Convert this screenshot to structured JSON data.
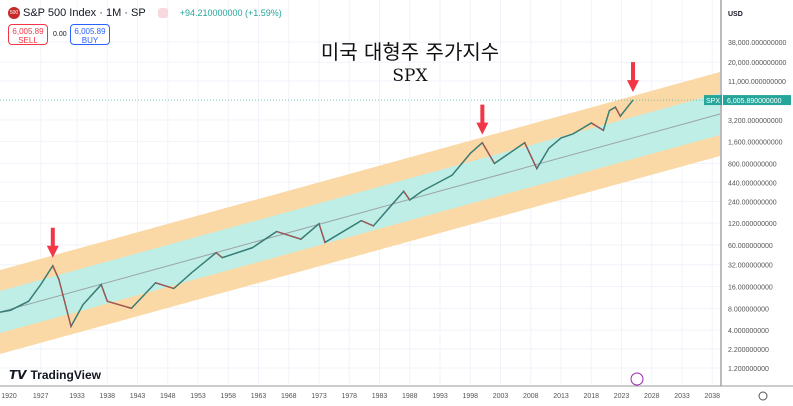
{
  "header": {
    "symbol": "S&P 500 Index · 1M · SP",
    "logo_text": "500",
    "change": "+94.210000000 (+1.59%)"
  },
  "trade": {
    "sell_price": "6,005.89",
    "sell_label": "SELL",
    "buy_price": "6,005.89",
    "buy_label": "BUY",
    "spread": "0.00"
  },
  "annotation": {
    "title": "미국 대형주 주가지수",
    "subtitle": "SPX"
  },
  "branding": "TradingView",
  "chart_data": {
    "type": "line",
    "scale": "log",
    "currency": "USD",
    "y_ticks": [
      "38,000.000000000",
      "20,000.000000000",
      "11,000.000000000",
      "3,200.000000000",
      "1,600.000000000",
      "800.000000000",
      "440.000000000",
      "240.000000000",
      "120.000000000",
      "60.000000000",
      "32.000000000",
      "16.000000000",
      "8.000000000",
      "4.000000000",
      "2.200000000",
      "1.200000000"
    ],
    "y_tick_values": [
      38000,
      20000,
      11000,
      3200,
      1600,
      800,
      440,
      240,
      120,
      60,
      32,
      16,
      8,
      4,
      2.2,
      1.2
    ],
    "x_ticks": [
      "1920",
      "1927",
      "1933",
      "1938",
      "1943",
      "1948",
      "1953",
      "1958",
      "1963",
      "1968",
      "1973",
      "1978",
      "1983",
      "1988",
      "1993",
      "1998",
      "2003",
      "2008",
      "2013",
      "2018",
      "2023",
      "2028",
      "2033",
      "2038"
    ],
    "last_label": "SPX",
    "last_value": "6,005.890000000",
    "series": [
      {
        "name": "SPX",
        "points": [
          [
            1920,
            7
          ],
          [
            1922,
            7.5
          ],
          [
            1925,
            10
          ],
          [
            1927,
            17
          ],
          [
            1929,
            31
          ],
          [
            1930,
            20
          ],
          [
            1932,
            4.5
          ],
          [
            1934,
            9
          ],
          [
            1937,
            17
          ],
          [
            1938,
            10
          ],
          [
            1942,
            8
          ],
          [
            1946,
            18
          ],
          [
            1949,
            15
          ],
          [
            1952,
            25
          ],
          [
            1956,
            47
          ],
          [
            1957,
            40
          ],
          [
            1962,
            55
          ],
          [
            1966,
            92
          ],
          [
            1970,
            72
          ],
          [
            1973,
            118
          ],
          [
            1974,
            65
          ],
          [
            1980,
            130
          ],
          [
            1982,
            110
          ],
          [
            1987,
            330
          ],
          [
            1988,
            250
          ],
          [
            1990,
            330
          ],
          [
            1995,
            550
          ],
          [
            1998,
            1100
          ],
          [
            2000,
            1550
          ],
          [
            2002,
            800
          ],
          [
            2007,
            1550
          ],
          [
            2009,
            680
          ],
          [
            2011,
            1300
          ],
          [
            2013,
            1800
          ],
          [
            2015,
            2050
          ],
          [
            2018,
            2900
          ],
          [
            2020,
            2300
          ],
          [
            2021,
            4300
          ],
          [
            2022,
            4800
          ],
          [
            2022.8,
            3600
          ],
          [
            2024,
            4800
          ],
          [
            2024.9,
            6005.89
          ]
        ]
      }
    ],
    "channel": {
      "start": [
        1920,
        7
      ],
      "end": [
        2038,
        3600
      ]
    },
    "arrows": [
      1929,
      2000,
      2024.9
    ],
    "colors": {
      "up": "#26a69a",
      "down": "#ef5350",
      "inner": "#bfeee6",
      "outer": "#fbd9a6",
      "arrow": "#f23645"
    }
  }
}
